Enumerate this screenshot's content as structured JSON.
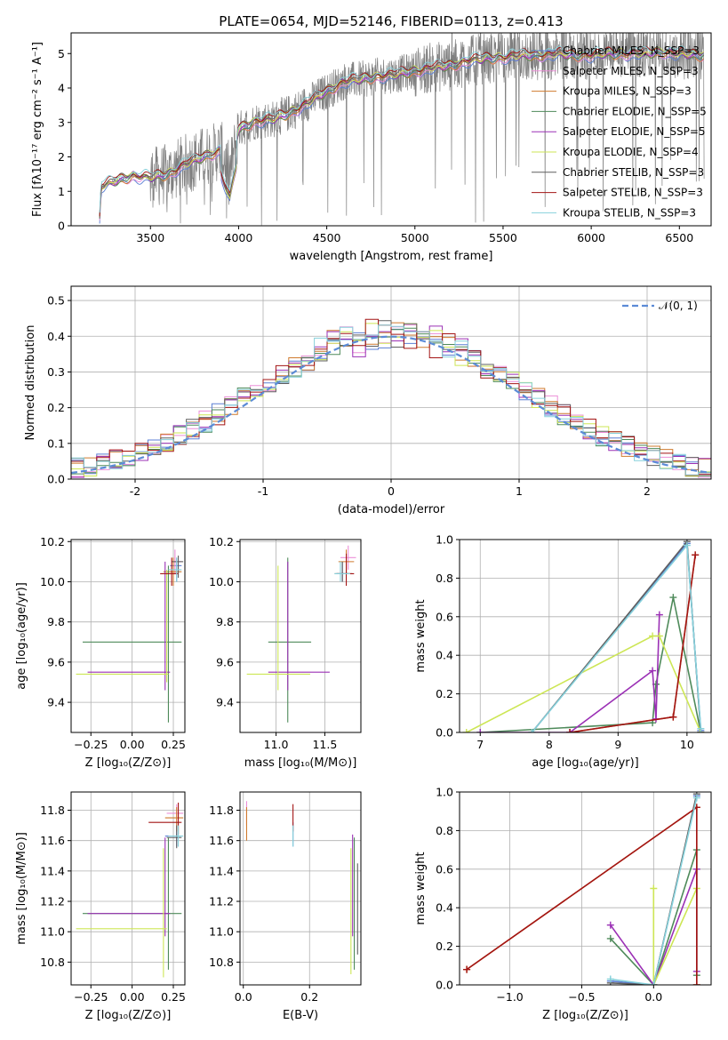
{
  "colors": {
    "grid": "#b0b0b0",
    "data": "#808080",
    "series": [
      "#5b7fd4",
      "#ec8fd8",
      "#cf7a2e",
      "#4e8a5a",
      "#9b30b5",
      "#cde655",
      "#5f5f5f",
      "#a31414",
      "#86d1db"
    ],
    "normal": "#5b8bd6"
  },
  "chart_data": [
    {
      "id": "spectrum",
      "type": "line",
      "title": "PLATE=0654, MJD=52146, FIBERID=0113, z=0.413",
      "xlabel": "wavelength [Angstrom, rest frame]",
      "ylabel": "Flux [fλ10⁻¹⁷ erg cm⁻² s⁻¹ A⁻¹]",
      "xlim": [
        3050,
        6680
      ],
      "ylim": [
        0,
        5.6
      ],
      "xticks": [
        3500,
        4000,
        4500,
        5000,
        5500,
        6000,
        6500
      ],
      "yticks": [
        0,
        1,
        2,
        3,
        4,
        5
      ],
      "grid": false,
      "legend_position": "upper-right",
      "continuum": [
        [
          3210,
          0
        ],
        [
          3220,
          1.15
        ],
        [
          3300,
          1.3
        ],
        [
          3400,
          1.45
        ],
        [
          3500,
          1.4
        ],
        [
          3600,
          1.5
        ],
        [
          3700,
          1.8
        ],
        [
          3800,
          2.0
        ],
        [
          3900,
          2.2
        ],
        [
          3950,
          1.5
        ],
        [
          4000,
          2.8
        ],
        [
          4100,
          3.05
        ],
        [
          4200,
          3.1
        ],
        [
          4300,
          3.3
        ],
        [
          4400,
          3.6
        ],
        [
          4500,
          3.9
        ],
        [
          4600,
          4.2
        ],
        [
          4700,
          4.25
        ],
        [
          4800,
          4.35
        ],
        [
          4900,
          4.4
        ],
        [
          5000,
          4.5
        ],
        [
          5100,
          4.6
        ],
        [
          5200,
          4.65
        ],
        [
          5300,
          4.8
        ],
        [
          5400,
          4.85
        ],
        [
          5500,
          4.9
        ],
        [
          5600,
          4.95
        ],
        [
          5700,
          4.95
        ],
        [
          5800,
          5.0
        ],
        [
          5900,
          4.95
        ],
        [
          6000,
          4.95
        ],
        [
          6100,
          5.0
        ],
        [
          6200,
          5.0
        ],
        [
          6300,
          5.0
        ],
        [
          6400,
          5.05
        ],
        [
          6500,
          5.0
        ],
        [
          6600,
          4.95
        ]
      ],
      "legend": [
        "Chabrier MILES, N_SSP=3",
        "Salpeter MILES, N_SSP=3",
        "Kroupa MILES, N_SSP=3",
        "Chabrier ELODIE, N_SSP=5",
        "Salpeter ELODIE, N_SSP=5",
        "Kroupa ELODIE, N_SSP=4",
        "Chabrier STELIB, N_SSP=3",
        "Salpeter STELIB, N_SSP=3",
        "Kroupa STELIB, N_SSP=3"
      ]
    },
    {
      "id": "residuals",
      "type": "line",
      "xlabel": "(data-model)/error",
      "ylabel": "Normed distribution",
      "xlim": [
        -2.5,
        2.5
      ],
      "ylim": [
        0,
        0.54
      ],
      "xticks": [
        -2,
        -1,
        0,
        1,
        2
      ],
      "yticks": [
        0.0,
        0.1,
        0.2,
        0.3,
        0.4,
        0.5
      ],
      "grid": true,
      "legend": [
        "𝒩(0, 1)"
      ],
      "legend_position": "upper-right",
      "normal_curve": {
        "mean": 0,
        "sigma": 1
      }
    },
    {
      "id": "age-vs-Z",
      "type": "scatter",
      "xlabel": "Z [log₁₀(Z/Z⊙)]",
      "ylabel": "age  [log₁₀(age/yr)]",
      "xlim": [
        -0.37,
        0.32
      ],
      "ylim": [
        9.25,
        10.21
      ],
      "xticks": [
        -0.25,
        0.0,
        0.25
      ],
      "xtick_labels": [
        "−0.25",
        "0.00",
        "0.25"
      ],
      "yticks": [
        9.4,
        9.6,
        9.8,
        10.0,
        10.2
      ],
      "grid": true,
      "points": [
        {
          "s": 0,
          "x": 0.27,
          "y": 10.08,
          "xe": [
            0.23,
            0.3
          ],
          "ye": [
            10.0,
            10.12
          ]
        },
        {
          "s": 1,
          "x": 0.26,
          "y": 10.1,
          "xe": [
            0.24,
            0.3
          ],
          "ye": [
            10.04,
            10.16
          ]
        },
        {
          "s": 2,
          "x": 0.25,
          "y": 10.05,
          "xe": [
            0.19,
            0.3
          ],
          "ye": [
            9.98,
            10.12
          ]
        },
        {
          "s": 3,
          "x": 0.22,
          "y": 9.7,
          "xe": [
            -0.3,
            0.3
          ],
          "ye": [
            9.3,
            10.08
          ]
        },
        {
          "s": 4,
          "x": 0.2,
          "y": 9.55,
          "xe": [
            -0.27,
            0.23
          ],
          "ye": [
            9.46,
            10.1
          ]
        },
        {
          "s": 5,
          "x": 0.21,
          "y": 9.54,
          "xe": [
            -0.34,
            0.22
          ],
          "ye": [
            9.5,
            10.06
          ]
        },
        {
          "s": 6,
          "x": 0.28,
          "y": 10.1,
          "xe": [
            0.24,
            0.31
          ],
          "ye": [
            10.02,
            10.13
          ]
        },
        {
          "s": 7,
          "x": 0.24,
          "y": 10.04,
          "xe": [
            0.17,
            0.28
          ],
          "ye": [
            9.98,
            10.12
          ]
        },
        {
          "s": 8,
          "x": 0.27,
          "y": 10.06,
          "xe": [
            0.22,
            0.3
          ],
          "ye": [
            10.0,
            10.12
          ]
        }
      ]
    },
    {
      "id": "age-vs-mass",
      "type": "scatter",
      "xlabel": "mass [log₁₀(M/M⊙)]",
      "ylabel": "",
      "xlim": [
        10.63,
        11.87
      ],
      "ylim": [
        9.25,
        10.21
      ],
      "xticks": [
        11.0,
        11.5
      ],
      "yticks": [
        9.4,
        9.6,
        9.8,
        10.0,
        10.2
      ],
      "grid": true,
      "points": [
        {
          "s": 0,
          "x": 11.68,
          "y": 10.04,
          "xe": [
            11.62,
            11.74
          ],
          "ye": [
            10.0,
            10.1
          ]
        },
        {
          "s": 1,
          "x": 11.74,
          "y": 10.12,
          "xe": [
            11.66,
            11.82
          ],
          "ye": [
            10.06,
            10.18
          ]
        },
        {
          "s": 2,
          "x": 11.72,
          "y": 10.1,
          "xe": [
            11.64,
            11.8
          ],
          "ye": [
            10.04,
            10.16
          ]
        },
        {
          "s": 3,
          "x": 11.12,
          "y": 9.7,
          "xe": [
            10.92,
            11.36
          ],
          "ye": [
            9.3,
            10.12
          ]
        },
        {
          "s": 4,
          "x": 11.12,
          "y": 9.55,
          "xe": [
            10.92,
            11.55
          ],
          "ye": [
            9.46,
            10.1
          ]
        },
        {
          "s": 5,
          "x": 11.02,
          "y": 9.54,
          "xe": [
            10.7,
            11.35
          ],
          "ye": [
            9.46,
            10.08
          ]
        },
        {
          "s": 6,
          "x": 11.68,
          "y": 10.04,
          "xe": [
            11.6,
            11.78
          ],
          "ye": [
            10.0,
            10.1
          ]
        },
        {
          "s": 7,
          "x": 11.72,
          "y": 10.04,
          "xe": [
            11.62,
            11.8
          ],
          "ye": [
            9.98,
            10.14
          ]
        },
        {
          "s": 8,
          "x": 11.66,
          "y": 10.04,
          "xe": [
            11.6,
            11.76
          ],
          "ye": [
            10.0,
            10.1
          ]
        }
      ]
    },
    {
      "id": "mass-weight-vs-age",
      "type": "line",
      "xlabel": "age  [log₁₀(age/yr)]",
      "ylabel": "mass weight",
      "xlim": [
        6.7,
        10.35
      ],
      "ylim": [
        0,
        1
      ],
      "xticks": [
        7,
        8,
        9,
        10
      ],
      "yticks": [
        0.0,
        0.2,
        0.4,
        0.6,
        0.8,
        1.0
      ],
      "grid": true,
      "series": [
        {
          "s": 0,
          "x": [
            7.75,
            10.0,
            10.2
          ],
          "y": [
            0.0,
            0.98,
            0.01
          ]
        },
        {
          "s": 2,
          "x": [
            8.3,
            9.8,
            10.12
          ],
          "y": [
            0.0,
            0.08,
            0.92
          ]
        },
        {
          "s": 3,
          "x": [
            7.0,
            9.5,
            9.55,
            9.8,
            10.2
          ],
          "y": [
            0.0,
            0.05,
            0.25,
            0.7,
            0.0
          ]
        },
        {
          "s": 4,
          "x": [
            7.0,
            8.3,
            9.5,
            9.55,
            9.6
          ],
          "y": [
            0.0,
            0.0,
            0.32,
            0.07,
            0.61
          ]
        },
        {
          "s": 5,
          "x": [
            6.8,
            9.5,
            9.6,
            10.2
          ],
          "y": [
            0.0,
            0.5,
            0.5,
            0.0
          ]
        },
        {
          "s": 6,
          "x": [
            7.75,
            10.0,
            10.2
          ],
          "y": [
            0.0,
            0.99,
            0.0
          ]
        },
        {
          "s": 7,
          "x": [
            8.3,
            9.8,
            10.12
          ],
          "y": [
            0.0,
            0.08,
            0.92
          ]
        },
        {
          "s": 8,
          "x": [
            7.75,
            10.0,
            10.2
          ],
          "y": [
            0.0,
            0.97,
            0.02
          ]
        }
      ]
    },
    {
      "id": "mass-vs-Z",
      "type": "scatter",
      "xlabel": "Z [log₁₀(Z/Z⊙)]",
      "ylabel": "mass [log₁₀(M/M⊙)]",
      "xlim": [
        -0.37,
        0.32
      ],
      "ylim": [
        10.65,
        11.92
      ],
      "xticks": [
        -0.25,
        0.0,
        0.25
      ],
      "xtick_labels": [
        "−0.25",
        "0.00",
        "0.25"
      ],
      "yticks": [
        10.8,
        11.0,
        11.2,
        11.4,
        11.6,
        11.8
      ],
      "grid": true,
      "points": [
        {
          "s": 0,
          "x": 0.27,
          "y": 11.63,
          "xe": [
            0.2,
            0.3
          ],
          "ye": [
            11.56,
            11.72
          ]
        },
        {
          "s": 1,
          "x": 0.27,
          "y": 11.78,
          "xe": [
            0.21,
            0.31
          ],
          "ye": [
            11.7,
            11.84
          ]
        },
        {
          "s": 2,
          "x": 0.27,
          "y": 11.75,
          "xe": [
            0.2,
            0.31
          ],
          "ye": [
            11.66,
            11.82
          ]
        },
        {
          "s": 3,
          "x": 0.22,
          "y": 11.12,
          "xe": [
            -0.3,
            0.3
          ],
          "ye": [
            10.75,
            11.62
          ]
        },
        {
          "s": 4,
          "x": 0.2,
          "y": 11.12,
          "xe": [
            -0.27,
            0.23
          ],
          "ye": [
            10.97,
            11.62
          ]
        },
        {
          "s": 5,
          "x": 0.19,
          "y": 11.02,
          "xe": [
            -0.34,
            0.21
          ],
          "ye": [
            10.7,
            11.55
          ]
        },
        {
          "s": 6,
          "x": 0.27,
          "y": 11.62,
          "xe": [
            0.21,
            0.3
          ],
          "ye": [
            11.55,
            11.7
          ]
        },
        {
          "s": 7,
          "x": 0.28,
          "y": 11.72,
          "xe": [
            0.1,
            0.3
          ],
          "ye": [
            11.64,
            11.85
          ]
        },
        {
          "s": 8,
          "x": 0.28,
          "y": 11.63,
          "xe": [
            0.22,
            0.31
          ],
          "ye": [
            11.56,
            11.7
          ]
        }
      ]
    },
    {
      "id": "mass-vs-ebv",
      "type": "scatter",
      "xlabel": "E(B-V)",
      "ylabel": "",
      "xlim": [
        -0.01,
        0.355
      ],
      "ylim": [
        10.65,
        11.92
      ],
      "xticks": [
        0.0,
        0.2
      ],
      "yticks": [
        10.8,
        11.0,
        11.2,
        11.4,
        11.6,
        11.8
      ],
      "grid": true,
      "points": [
        {
          "s": 0,
          "x": 0.15,
          "y": 11.63,
          "xe": [
            0.15,
            0.15
          ],
          "ye": [
            11.56,
            11.72
          ]
        },
        {
          "s": 1,
          "x": 0.01,
          "y": 11.78,
          "xe": [
            0.01,
            0.01
          ],
          "ye": [
            11.7,
            11.86
          ]
        },
        {
          "s": 2,
          "x": 0.01,
          "y": 11.7,
          "xe": [
            0.01,
            0.01
          ],
          "ye": [
            11.6,
            11.82
          ]
        },
        {
          "s": 3,
          "x": 0.335,
          "y": 11.12,
          "xe": [
            0.335,
            0.335
          ],
          "ye": [
            10.75,
            11.62
          ]
        },
        {
          "s": 4,
          "x": 0.33,
          "y": 11.12,
          "xe": [
            0.33,
            0.33
          ],
          "ye": [
            10.97,
            11.64
          ]
        },
        {
          "s": 5,
          "x": 0.325,
          "y": 11.02,
          "xe": [
            0.325,
            0.325
          ],
          "ye": [
            10.72,
            11.55
          ]
        },
        {
          "s": 6,
          "x": 0.345,
          "y": 11.1,
          "xe": [
            0.345,
            0.345
          ],
          "ye": [
            10.85,
            11.45
          ]
        },
        {
          "s": 7,
          "x": 0.15,
          "y": 11.75,
          "xe": [
            0.15,
            0.15
          ],
          "ye": [
            11.66,
            11.84
          ]
        },
        {
          "s": 8,
          "x": 0.15,
          "y": 11.63,
          "xe": [
            0.15,
            0.15
          ],
          "ye": [
            11.56,
            11.7
          ]
        }
      ]
    },
    {
      "id": "mass-weight-vs-Z",
      "type": "line",
      "xlabel": "Z [log₁₀(Z/Z⊙)]",
      "ylabel": "mass weight",
      "xlim": [
        -1.35,
        0.4
      ],
      "ylim": [
        0,
        1
      ],
      "xticks": [
        -1.0,
        -0.5,
        0.0
      ],
      "xtick_labels": [
        "−1.0",
        "−0.5",
        "0.0"
      ],
      "yticks": [
        0.0,
        0.2,
        0.4,
        0.6,
        0.8,
        1.0
      ],
      "grid": true,
      "series": [
        {
          "s": 0,
          "x": [
            -0.3,
            0.0,
            0.3
          ],
          "y": [
            0.02,
            0.0,
            0.98
          ]
        },
        {
          "s": 2,
          "x": [
            -1.3,
            0.3,
            0.3
          ],
          "y": [
            0.08,
            0.92,
            0.0
          ]
        },
        {
          "s": 3,
          "x": [
            -0.3,
            0.0,
            0.3,
            0.3
          ],
          "y": [
            0.24,
            0.0,
            0.7,
            0.05
          ]
        },
        {
          "s": 4,
          "x": [
            -0.3,
            0.0,
            0.3,
            0.3
          ],
          "y": [
            0.31,
            0.0,
            0.6,
            0.07
          ]
        },
        {
          "s": 5,
          "x": [
            0.0,
            0.0,
            0.3
          ],
          "y": [
            0.5,
            0.0,
            0.5
          ]
        },
        {
          "s": 6,
          "x": [
            -0.3,
            0.0,
            0.3
          ],
          "y": [
            0.01,
            0.0,
            0.99
          ]
        },
        {
          "s": 7,
          "x": [
            -1.3,
            0.3,
            0.3
          ],
          "y": [
            0.08,
            0.92,
            0.0
          ]
        },
        {
          "s": 8,
          "x": [
            -0.3,
            0.0,
            0.3
          ],
          "y": [
            0.03,
            0.0,
            0.97
          ]
        }
      ]
    }
  ]
}
